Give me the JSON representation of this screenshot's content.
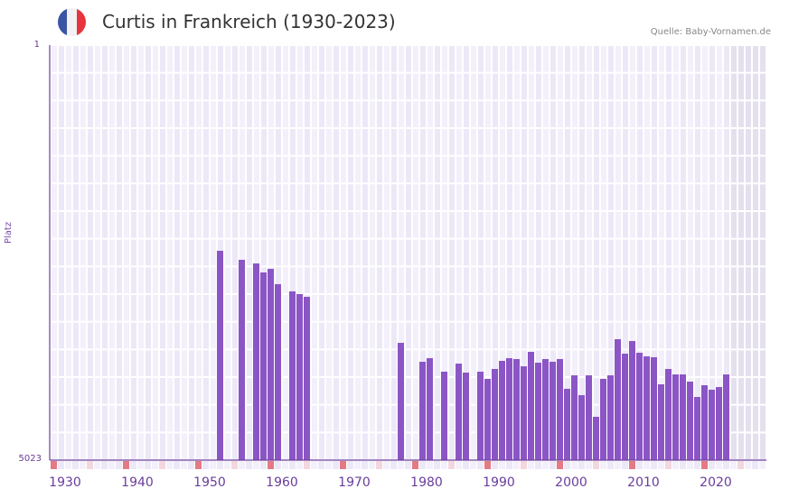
{
  "header": {
    "title": "Curtis in Frankreich (1930-2023)",
    "source": "Quelle: Baby-Vornamen.de",
    "flag_colors": [
      "#3a55a4",
      "#f2f2f5",
      "#e8343c"
    ]
  },
  "axis": {
    "y_title": "Platz",
    "y_top_label": "1",
    "y_bottom_label": "5023",
    "x_labels": [
      "1930",
      "1940",
      "1950",
      "1960",
      "1970",
      "1980",
      "1990",
      "2000",
      "2010",
      "2020"
    ]
  },
  "colors": {
    "bar": "#8b55c6",
    "axis": "#6a3d9a",
    "grid_cell_a": "#f3f0fb",
    "grid_cell_b": "#ede8f7",
    "future_cell": "#e4e0ee",
    "decade_marker": "#e47a84",
    "half_decade_marker": "#f3d6de"
  },
  "chart_data": {
    "type": "bar",
    "title": "Curtis in Frankreich (1930-2023)",
    "xlabel": "",
    "ylabel": "Platz",
    "ylim": [
      5023,
      1
    ],
    "y_inverted": true,
    "x_range": [
      1930,
      2028
    ],
    "grid": true,
    "legend": null,
    "x": [
      1953,
      1956,
      1958,
      1959,
      1960,
      1961,
      1963,
      1964,
      1965,
      1978,
      1981,
      1982,
      1984,
      1986,
      1987,
      1989,
      1990,
      1991,
      1992,
      1993,
      1994,
      1995,
      1996,
      1997,
      1998,
      1999,
      2000,
      2001,
      2002,
      2003,
      2004,
      2005,
      2006,
      2007,
      2008,
      2009,
      2010,
      2011,
      2012,
      2013,
      2014,
      2015,
      2016,
      2017,
      2018,
      2019,
      2020,
      2021,
      2022,
      2023
    ],
    "values": [
      2490,
      2599,
      2643,
      2752,
      2708,
      2894,
      2981,
      3014,
      3047,
      3604,
      3833,
      3789,
      3953,
      3855,
      3964,
      3953,
      4040,
      3920,
      3822,
      3789,
      3800,
      3888,
      3713,
      3844,
      3800,
      3833,
      3800,
      4160,
      3997,
      4237,
      3997,
      4499,
      4040,
      3997,
      3560,
      3735,
      3582,
      3724,
      3767,
      3778,
      4106,
      3920,
      3986,
      3986,
      4073,
      4259,
      4117,
      4171,
      4139,
      3986
    ]
  }
}
